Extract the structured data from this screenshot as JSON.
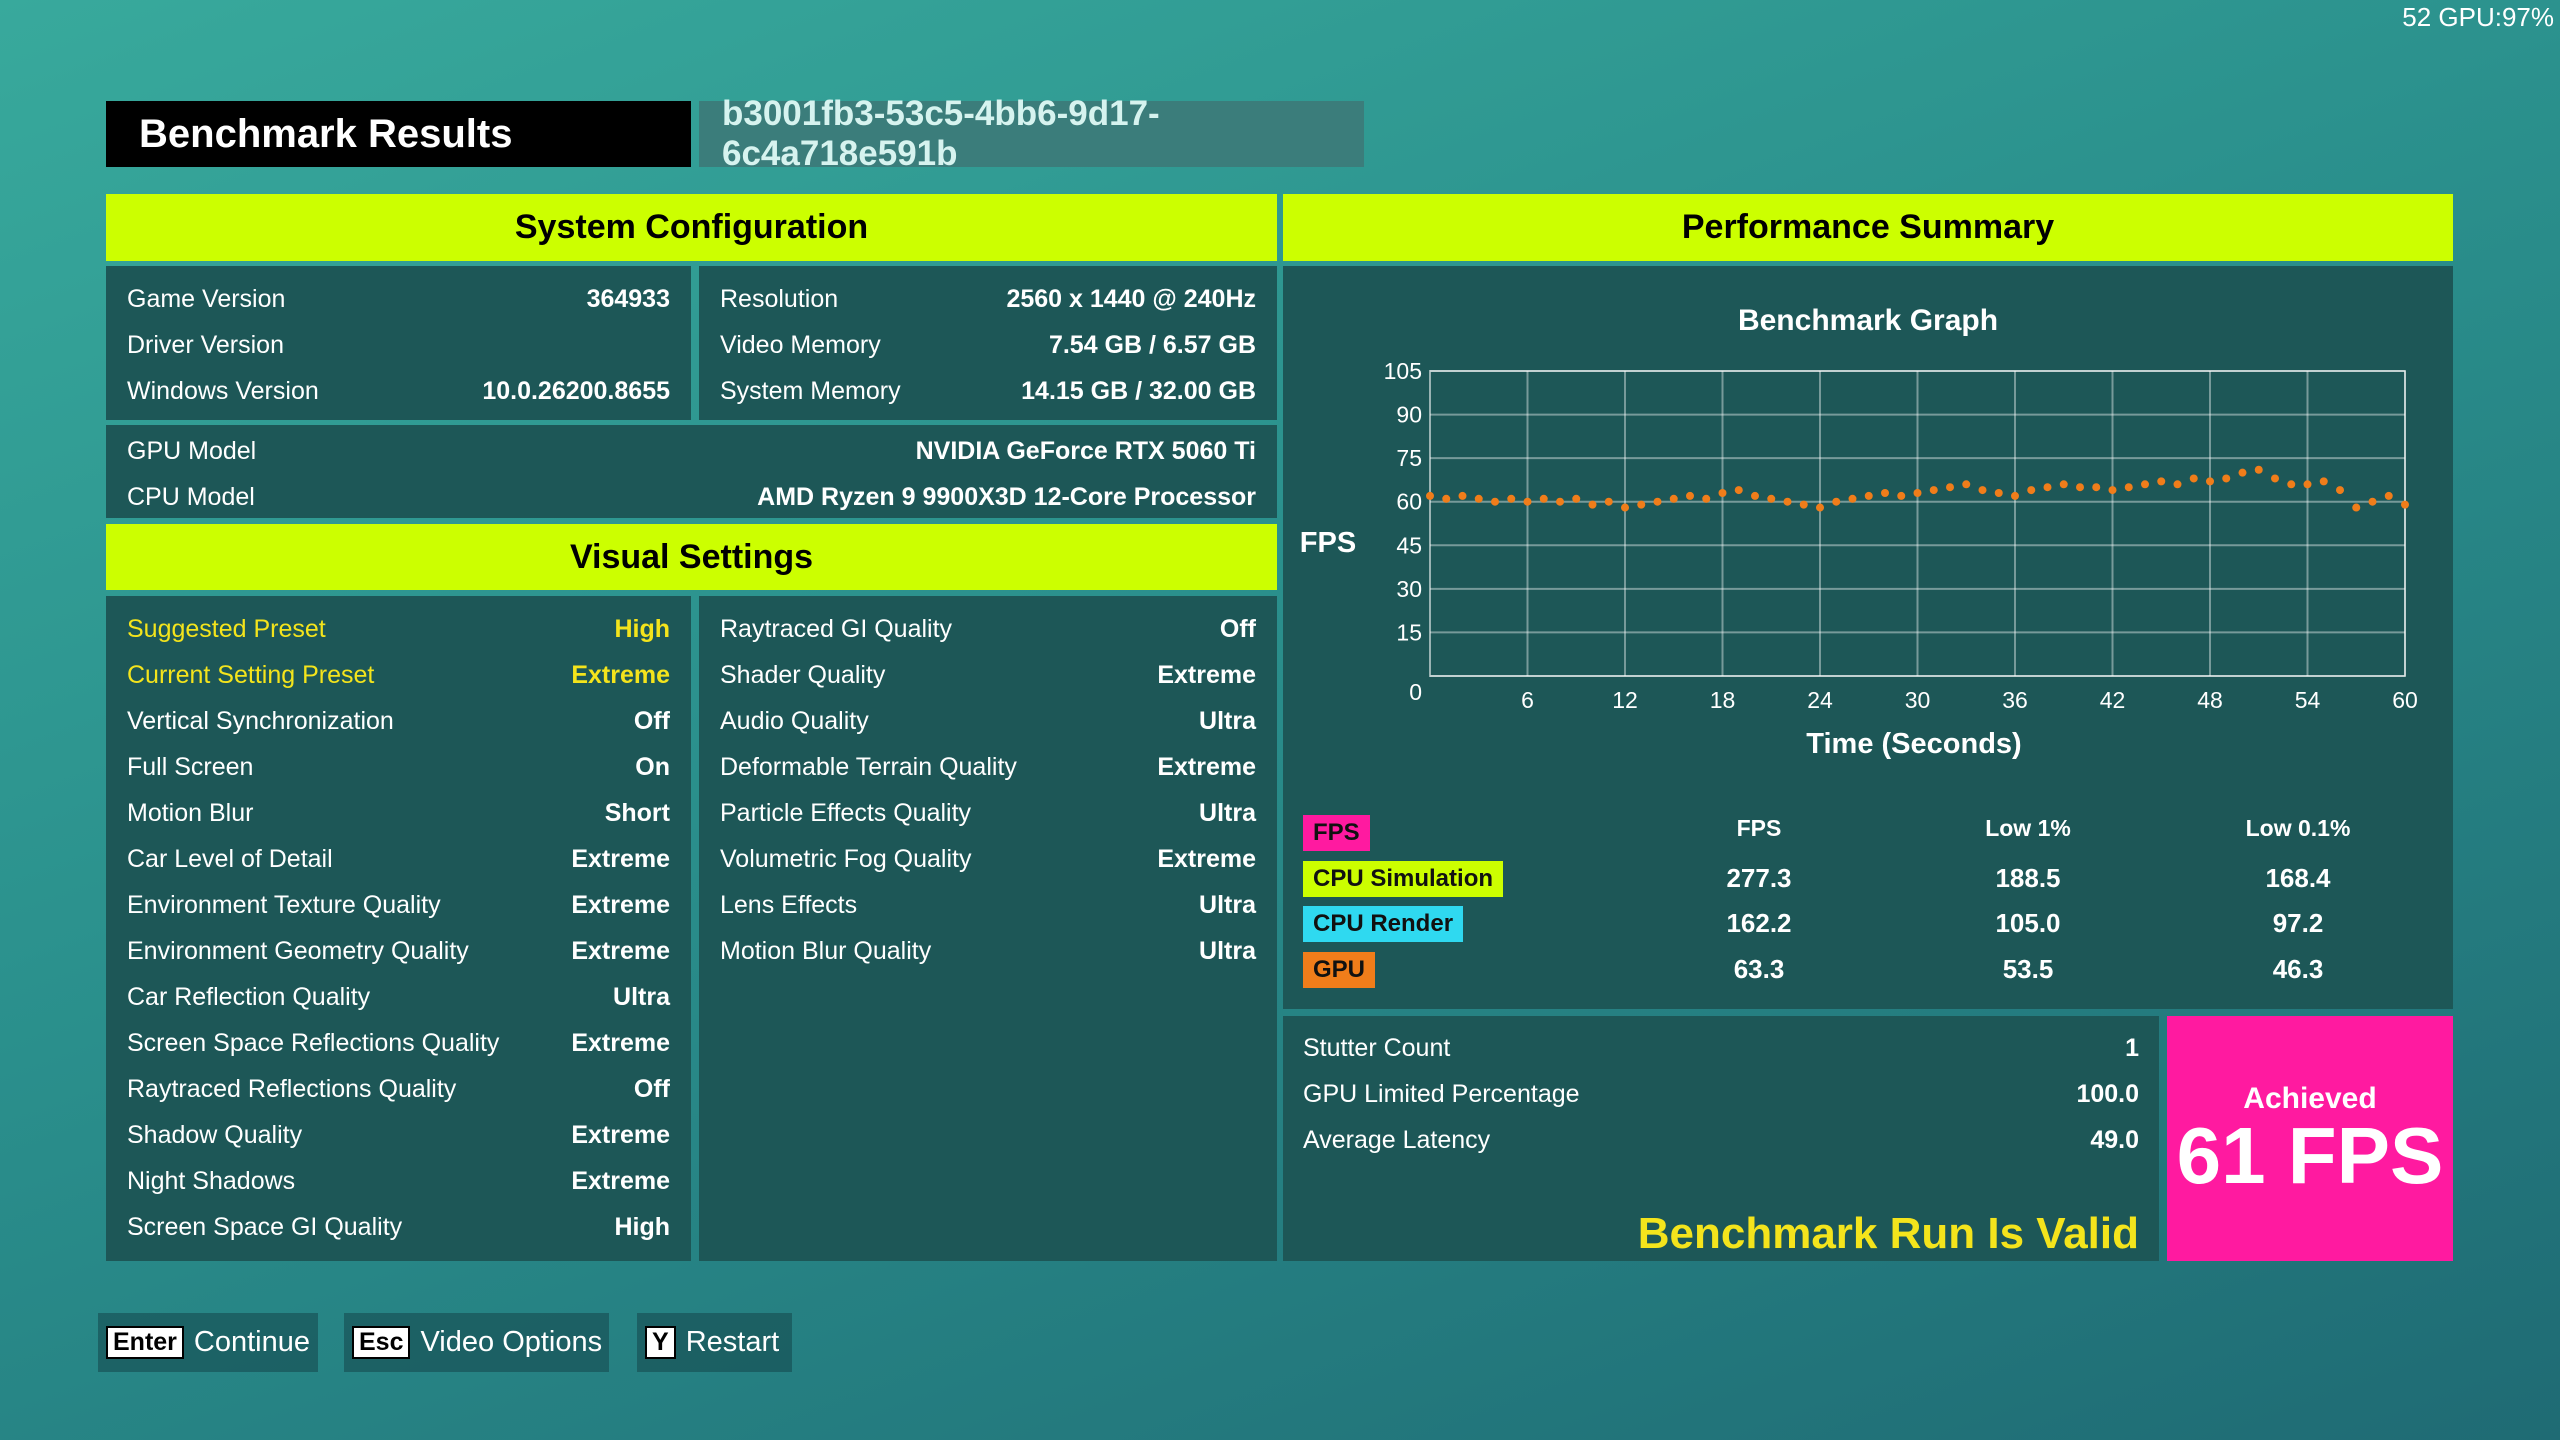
{
  "overlay": "52 GPU:97%",
  "header": {
    "title": "Benchmark Results",
    "run_id": "b3001fb3-53c5-4bb6-9d17-6c4a718e591b"
  },
  "system_configuration": {
    "title": "System Configuration",
    "left": [
      {
        "label": "Game Version",
        "value": "364933"
      },
      {
        "label": "Driver Version"
      },
      {
        "label": "Windows Version",
        "value": "10.0.26200.8655"
      }
    ],
    "right": [
      {
        "label": "Resolution",
        "value": "2560 x 1440 @ 240Hz"
      },
      {
        "label": "Video Memory",
        "value": "7.54 GB / 6.57 GB"
      },
      {
        "label": "System Memory",
        "value": "14.15 GB / 32.00 GB"
      }
    ],
    "hardware": [
      {
        "label": "GPU Model",
        "value": "NVIDIA GeForce RTX 5060 Ti"
      },
      {
        "label": "CPU Model",
        "value": "AMD Ryzen 9 9900X3D 12-Core Processor"
      }
    ]
  },
  "visual_settings": {
    "title": "Visual Settings",
    "left": [
      {
        "label": "Suggested Preset",
        "value": "High",
        "highlight": true
      },
      {
        "label": "Current Setting Preset",
        "value": "Extreme",
        "highlight": true
      },
      {
        "label": "Vertical Synchronization",
        "value": "Off"
      },
      {
        "label": "Full Screen",
        "value": "On"
      },
      {
        "label": "Motion Blur",
        "value": "Short"
      },
      {
        "label": "Car Level of Detail",
        "value": "Extreme"
      },
      {
        "label": "Environment Texture Quality",
        "value": "Extreme"
      },
      {
        "label": "Environment Geometry Quality",
        "value": "Extreme"
      },
      {
        "label": "Car Reflection Quality",
        "value": "Ultra"
      },
      {
        "label": "Screen Space Reflections Quality",
        "value": "Extreme"
      },
      {
        "label": "Raytraced Reflections Quality",
        "value": "Off"
      },
      {
        "label": "Shadow Quality",
        "value": "Extreme"
      },
      {
        "label": "Night Shadows",
        "value": "Extreme"
      },
      {
        "label": "Screen Space GI Quality",
        "value": "High"
      }
    ],
    "right": [
      {
        "label": "Raytraced GI Quality",
        "value": "Off"
      },
      {
        "label": "Shader Quality",
        "value": "Extreme"
      },
      {
        "label": "Audio Quality",
        "value": "Ultra"
      },
      {
        "label": "Deformable Terrain Quality",
        "value": "Extreme"
      },
      {
        "label": "Particle Effects Quality",
        "value": "Ultra"
      },
      {
        "label": "Volumetric Fog Quality",
        "value": "Extreme"
      },
      {
        "label": "Lens Effects",
        "value": "Ultra"
      },
      {
        "label": "Motion Blur Quality",
        "value": "Ultra"
      }
    ]
  },
  "performance_summary": {
    "title": "Performance Summary",
    "chart_data": {
      "type": "scatter",
      "title": "Benchmark Graph",
      "y_label": "FPS",
      "x_label": "Time (Seconds)",
      "x": [
        0,
        1,
        2,
        3,
        4,
        5,
        6,
        7,
        8,
        9,
        10,
        11,
        12,
        13,
        14,
        15,
        16,
        17,
        18,
        19,
        20,
        21,
        22,
        23,
        24,
        25,
        26,
        27,
        28,
        29,
        30,
        31,
        32,
        33,
        34,
        35,
        36,
        37,
        38,
        39,
        40,
        41,
        42,
        43,
        44,
        45,
        46,
        47,
        48,
        49,
        50,
        51,
        52,
        53,
        54,
        55,
        56,
        57,
        58,
        59,
        60
      ],
      "values": [
        62,
        61,
        62,
        61,
        60,
        61,
        60,
        61,
        60,
        61,
        59,
        60,
        58,
        59,
        60,
        61,
        62,
        61,
        63,
        64,
        62,
        61,
        60,
        59,
        58,
        60,
        61,
        62,
        63,
        62,
        63,
        64,
        65,
        66,
        64,
        63,
        62,
        64,
        65,
        66,
        65,
        65,
        64,
        65,
        66,
        67,
        66,
        68,
        67,
        68,
        70,
        71,
        68,
        66,
        66,
        67,
        64,
        58,
        60,
        62,
        59
      ],
      "color": "#f07d1a",
      "xlim": [
        0,
        60
      ],
      "ylim": [
        0,
        105
      ],
      "xticks": [
        6,
        12,
        18,
        24,
        30,
        36,
        42,
        48,
        54,
        60
      ],
      "yticks": [
        0,
        15,
        30,
        45,
        60,
        75,
        90,
        105
      ],
      "grid": true
    },
    "stats": {
      "headers": [
        "FPS",
        "Low 1%",
        "Low 0.1%"
      ],
      "rows": [
        {
          "name": "FPS",
          "color": "#ff1aa0"
        },
        {
          "name": "CPU Simulation",
          "color": "#ccff00",
          "values": [
            "277.3",
            "188.5",
            "168.4"
          ]
        },
        {
          "name": "CPU Render",
          "color": "#2fd9f0",
          "values": [
            "162.2",
            "105.0",
            "97.2"
          ]
        },
        {
          "name": "GPU",
          "color": "#f07d1a",
          "values": [
            "63.3",
            "53.5",
            "46.3"
          ]
        }
      ]
    },
    "metrics": [
      {
        "label": "Stutter Count",
        "value": "1"
      },
      {
        "label": "GPU Limited Percentage",
        "value": "100.0"
      },
      {
        "label": "Average Latency",
        "value": "49.0"
      }
    ],
    "validity": "Benchmark Run Is Valid",
    "achieved": {
      "label": "Achieved",
      "value": "61 FPS"
    }
  },
  "footer": [
    {
      "key": "Enter",
      "label": "Continue"
    },
    {
      "key": "Esc",
      "label": "Video Options"
    },
    {
      "key": "Y",
      "label": "Restart"
    }
  ]
}
